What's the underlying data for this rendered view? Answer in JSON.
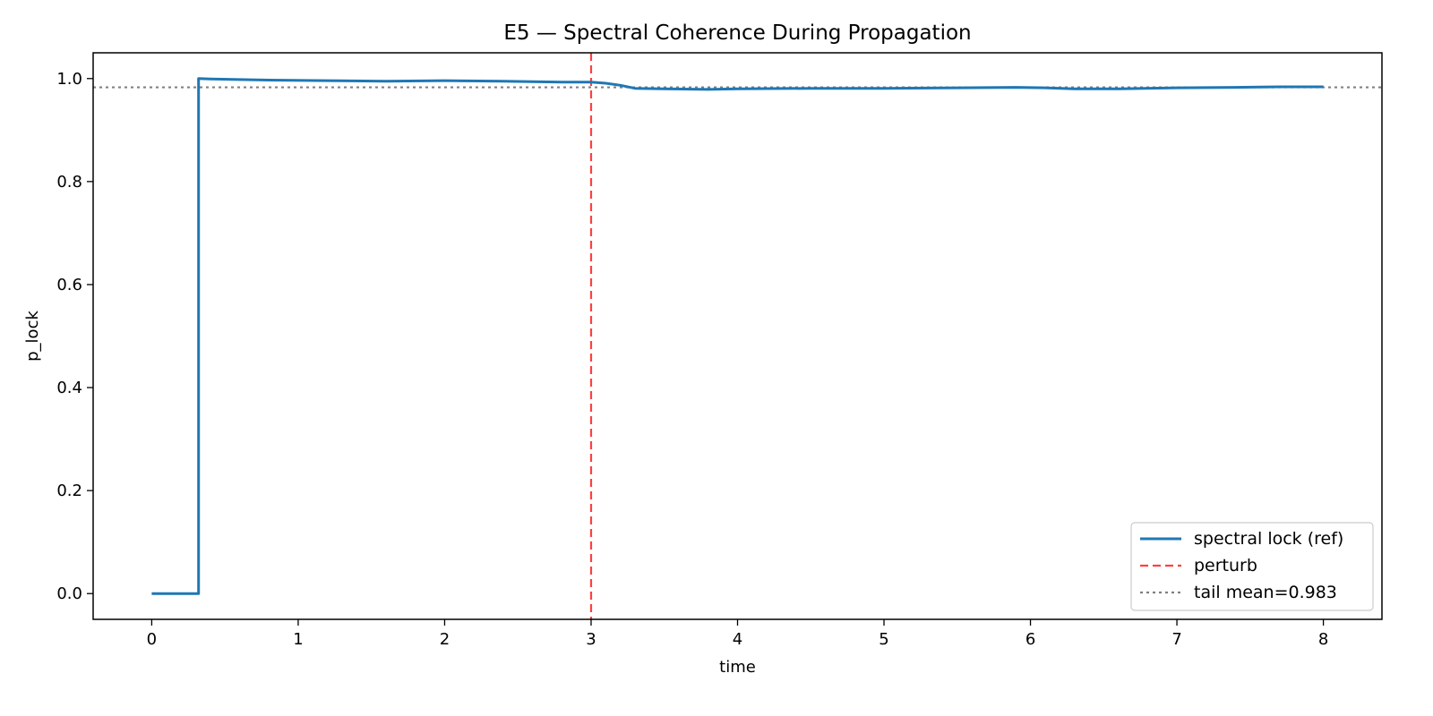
{
  "chart_data": {
    "type": "line",
    "title": "E5 — Spectral Coherence During Propagation",
    "xlabel": "time",
    "ylabel": "p_lock",
    "xlim": [
      -0.4,
      8.4
    ],
    "ylim": [
      -0.05,
      1.05
    ],
    "xticks": [
      0,
      1,
      2,
      3,
      4,
      5,
      6,
      7,
      8
    ],
    "xtick_labels": [
      "0",
      "1",
      "2",
      "3",
      "4",
      "5",
      "6",
      "7",
      "8"
    ],
    "yticks": [
      0.0,
      0.2,
      0.4,
      0.6,
      0.8,
      1.0
    ],
    "ytick_labels": [
      "0.0",
      "0.2",
      "0.4",
      "0.6",
      "0.8",
      "1.0"
    ],
    "grid": false,
    "legend_position": "lower-right",
    "series": [
      {
        "name": "spectral lock (ref)",
        "color": "#1f77b4",
        "style": "solid",
        "x": [
          0,
          0.32,
          0.32,
          0.4,
          0.8,
          1.2,
          1.6,
          2.0,
          2.4,
          2.8,
          3.0,
          3.1,
          3.2,
          3.3,
          3.5,
          3.8,
          4.0,
          4.5,
          5.0,
          5.5,
          5.9,
          6.1,
          6.3,
          6.6,
          7.0,
          7.4,
          7.7,
          8.0
        ],
        "y": [
          0.0,
          0.0,
          1.0,
          0.999,
          0.997,
          0.996,
          0.995,
          0.996,
          0.995,
          0.993,
          0.993,
          0.991,
          0.987,
          0.981,
          0.98,
          0.979,
          0.98,
          0.981,
          0.981,
          0.982,
          0.983,
          0.982,
          0.98,
          0.98,
          0.982,
          0.983,
          0.984,
          0.984
        ]
      }
    ],
    "reference_lines": [
      {
        "name": "perturb",
        "orientation": "vertical",
        "value": 3.0,
        "color": "#ff4040",
        "style": "dashed"
      },
      {
        "name": "tail mean=0.983",
        "orientation": "horizontal",
        "value": 0.983,
        "color": "#808080",
        "style": "dotted"
      }
    ]
  }
}
